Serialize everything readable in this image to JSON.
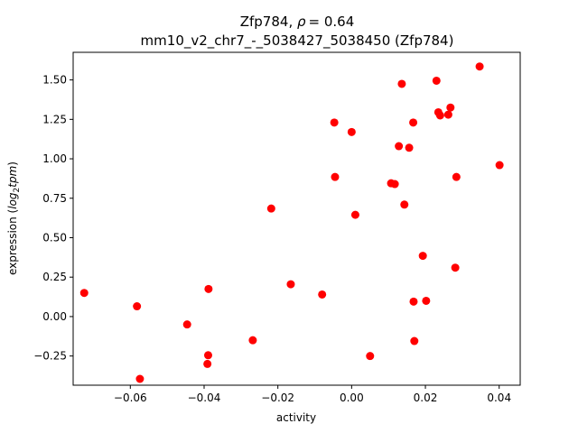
{
  "chart_data": {
    "type": "scatter",
    "title_gene": "Zfp784",
    "title_rho_symbol": "ρ",
    "title_rho_value": "= 0.64",
    "subtitle": "mm10_v2_chr7_-_5038427_5038450 (Zfp784)",
    "xlabel": "activity",
    "ylabel_prefix": "expression (",
    "ylabel_log": "log",
    "ylabel_sub": "2",
    "ylabel_tpm": "tpm",
    "ylabel_suffix": ")",
    "xlim": [
      -0.0755,
      0.0457
    ],
    "ylim": [
      -0.435,
      1.675
    ],
    "xticks": [
      -0.06,
      -0.04,
      -0.02,
      0.0,
      0.02,
      0.04
    ],
    "xtick_labels": [
      "−0.06",
      "−0.04",
      "−0.02",
      "0.00",
      "0.02",
      "0.04"
    ],
    "yticks": [
      -0.25,
      0.0,
      0.25,
      0.5,
      0.75,
      1.0,
      1.25,
      1.5
    ],
    "ytick_labels": [
      "−0.25",
      "0.00",
      "0.25",
      "0.50",
      "0.75",
      "1.00",
      "1.25",
      "1.50"
    ],
    "marker_color": "#ff0000",
    "grid": false,
    "points": [
      {
        "x": -0.0725,
        "y": 0.15
      },
      {
        "x": -0.0582,
        "y": 0.065
      },
      {
        "x": -0.0574,
        "y": -0.395
      },
      {
        "x": -0.0446,
        "y": -0.05
      },
      {
        "x": -0.0388,
        "y": 0.175
      },
      {
        "x": -0.0389,
        "y": -0.245
      },
      {
        "x": -0.0391,
        "y": -0.3
      },
      {
        "x": -0.0268,
        "y": -0.15
      },
      {
        "x": -0.0218,
        "y": 0.685
      },
      {
        "x": -0.0165,
        "y": 0.205
      },
      {
        "x": -0.008,
        "y": 0.14
      },
      {
        "x": -0.0047,
        "y": 1.23
      },
      {
        "x": -0.0045,
        "y": 0.885
      },
      {
        "x": 0.0,
        "y": 1.17
      },
      {
        "x": 0.001,
        "y": 0.645
      },
      {
        "x": 0.005,
        "y": -0.25
      },
      {
        "x": 0.0107,
        "y": 0.845
      },
      {
        "x": 0.0117,
        "y": 0.84
      },
      {
        "x": 0.0128,
        "y": 1.08
      },
      {
        "x": 0.0136,
        "y": 1.475
      },
      {
        "x": 0.0143,
        "y": 0.71
      },
      {
        "x": 0.0156,
        "y": 1.07
      },
      {
        "x": 0.0167,
        "y": 1.23
      },
      {
        "x": 0.0168,
        "y": 0.095
      },
      {
        "x": 0.017,
        "y": -0.155
      },
      {
        "x": 0.0193,
        "y": 0.385
      },
      {
        "x": 0.0202,
        "y": 0.1
      },
      {
        "x": 0.023,
        "y": 1.495
      },
      {
        "x": 0.0235,
        "y": 1.295
      },
      {
        "x": 0.024,
        "y": 1.275
      },
      {
        "x": 0.0262,
        "y": 1.28
      },
      {
        "x": 0.0268,
        "y": 1.325
      },
      {
        "x": 0.0281,
        "y": 0.31
      },
      {
        "x": 0.0284,
        "y": 0.885
      },
      {
        "x": 0.0347,
        "y": 1.585
      },
      {
        "x": 0.0401,
        "y": 0.96
      }
    ]
  }
}
